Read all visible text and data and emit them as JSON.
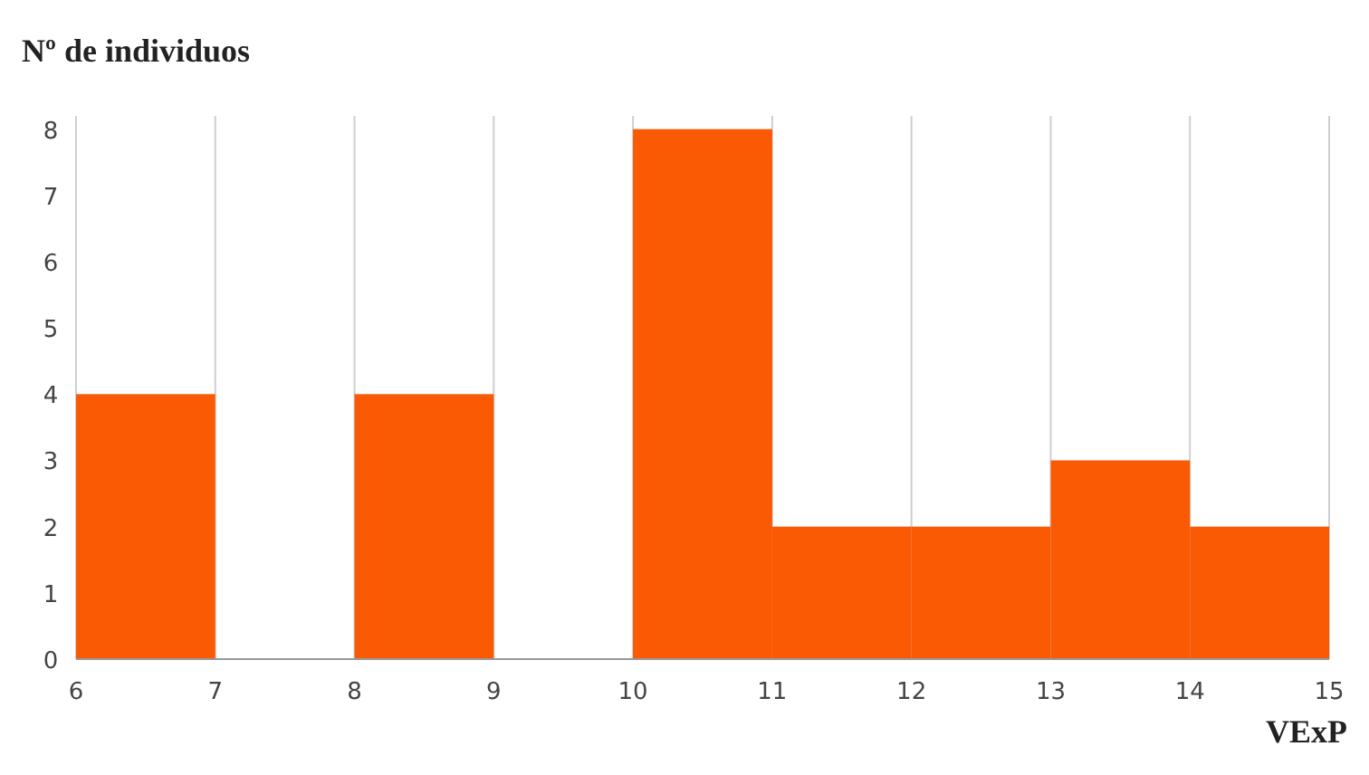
{
  "chart_data": {
    "type": "histogram",
    "ylabel": "Nº de individuos",
    "xlabel": "VExP",
    "bins": [
      6,
      7,
      8,
      9,
      10,
      11,
      12,
      13,
      14,
      15
    ],
    "values": [
      4,
      0,
      4,
      0,
      8,
      2,
      2,
      3,
      2
    ],
    "color": "#fb5a05",
    "xlim": [
      6,
      15
    ],
    "xticks": [
      6,
      7,
      8,
      9,
      10,
      11,
      12,
      13,
      14,
      15
    ],
    "ylim": [
      0,
      8.2
    ],
    "yticks": [
      0,
      1,
      2,
      3,
      4,
      5,
      6,
      7,
      8
    ],
    "grid": "x"
  }
}
